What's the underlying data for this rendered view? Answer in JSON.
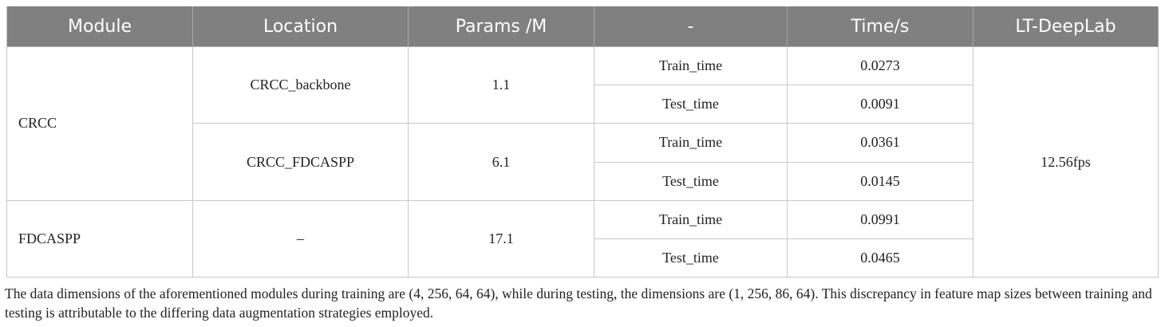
{
  "table": {
    "columns": [
      "Module",
      "Location",
      "Params /M",
      "-",
      "Time/s",
      "LT-DeepLab"
    ],
    "modules": [
      {
        "module": "CRCC",
        "locations": [
          {
            "location": "CRCC_backbone",
            "params": 1.1,
            "times": [
              {
                "phase": "Train_time",
                "time": 0.0273
              },
              {
                "phase": "Test_time",
                "time": 0.0091
              }
            ]
          },
          {
            "location": "CRCC_FDCASPP",
            "params": 6.1,
            "times": [
              {
                "phase": "Train_time",
                "time": 0.0361
              },
              {
                "phase": "Test_time",
                "time": 0.0145
              }
            ]
          }
        ]
      },
      {
        "module": "FDCASPP",
        "locations": [
          {
            "location": "–",
            "params": 17.1,
            "times": [
              {
                "phase": "Train_time",
                "time": 0.0991
              },
              {
                "phase": "Test_time",
                "time": 0.0465
              }
            ]
          }
        ]
      }
    ],
    "lt_deeplab": "12.56fps"
  },
  "footnote": "The data dimensions of the aforementioned modules during training are (4, 256, 64, 64), while during testing, the dimensions are (1, 256, 86, 64). This discrepancy in feature map sizes between training and testing is attributable to the differing data augmentation strategies employed."
}
